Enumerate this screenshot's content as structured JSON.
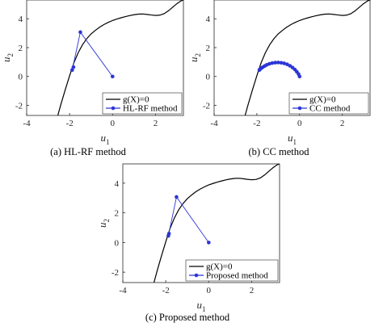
{
  "chart_data": [
    {
      "type": "line",
      "caption": "(a) HL-RF method",
      "xlabel": "u",
      "xlabel_sub": "1",
      "ylabel": "u",
      "ylabel_sub": "2",
      "xlim": [
        -4,
        3.3
      ],
      "ylim": [
        -2.7,
        5.3
      ],
      "xticks": [
        -4,
        -2,
        0,
        2
      ],
      "yticks": [
        -2,
        0,
        2,
        4
      ],
      "legend_position": "bottom-right",
      "series": [
        {
          "name": "g(X)=0",
          "color": "#000000",
          "marker": "none",
          "x": [
            -2.55,
            -2.4,
            -2.2,
            -2.0,
            -1.8,
            -1.6,
            -1.4,
            -1.2,
            -1.0,
            -0.8,
            -0.6,
            -0.4,
            -0.2,
            0.0,
            0.2,
            0.4,
            0.6,
            0.8,
            1.0,
            1.2,
            1.4,
            1.6,
            1.8,
            2.0,
            2.2,
            2.4,
            2.6,
            2.8,
            3.0,
            3.2,
            3.3
          ],
          "y": [
            -2.7,
            -1.9,
            -0.9,
            0.05,
            0.95,
            1.65,
            2.2,
            2.62,
            2.95,
            3.2,
            3.42,
            3.6,
            3.75,
            3.88,
            3.98,
            4.07,
            4.15,
            4.22,
            4.28,
            4.32,
            4.33,
            4.3,
            4.26,
            4.23,
            4.25,
            4.35,
            4.55,
            4.8,
            5.05,
            5.25,
            5.3
          ]
        },
        {
          "name": "HL-RF method",
          "color": "#2b35d6",
          "marker": "dot",
          "x": [
            0.0,
            -1.5,
            -1.88,
            -1.82
          ],
          "y": [
            0.0,
            3.07,
            0.45,
            0.65
          ]
        }
      ]
    },
    {
      "type": "line",
      "caption": "(b) CC method",
      "xlabel": "u",
      "xlabel_sub": "1",
      "ylabel": "u",
      "ylabel_sub": "2",
      "xlim": [
        -4,
        3.3
      ],
      "ylim": [
        -2.7,
        5.3
      ],
      "xticks": [
        -4,
        -2,
        0,
        2
      ],
      "yticks": [
        -2,
        0,
        2,
        4
      ],
      "legend_position": "bottom-right",
      "series": [
        {
          "name": "g(X)=0",
          "color": "#000000",
          "marker": "none",
          "x": [
            -2.55,
            -2.4,
            -2.2,
            -2.0,
            -1.8,
            -1.6,
            -1.4,
            -1.2,
            -1.0,
            -0.8,
            -0.6,
            -0.4,
            -0.2,
            0.0,
            0.2,
            0.4,
            0.6,
            0.8,
            1.0,
            1.2,
            1.4,
            1.6,
            1.8,
            2.0,
            2.2,
            2.4,
            2.6,
            2.8,
            3.0,
            3.2,
            3.3
          ],
          "y": [
            -2.7,
            -1.9,
            -0.9,
            0.05,
            0.95,
            1.65,
            2.2,
            2.62,
            2.95,
            3.2,
            3.42,
            3.6,
            3.75,
            3.88,
            3.98,
            4.07,
            4.15,
            4.22,
            4.28,
            4.32,
            4.33,
            4.3,
            4.26,
            4.23,
            4.25,
            4.35,
            4.55,
            4.8,
            5.05,
            5.25,
            5.3
          ]
        },
        {
          "name": "CC method",
          "color": "#2b35d6",
          "marker": "dot",
          "x": [
            0.0,
            -0.05,
            -0.13,
            -0.22,
            -0.33,
            -0.45,
            -0.58,
            -0.72,
            -0.86,
            -1.0,
            -1.14,
            -1.28,
            -1.41,
            -1.53,
            -1.63,
            -1.72,
            -1.79,
            -1.84,
            -1.87,
            -1.88
          ],
          "y": [
            0.0,
            0.17,
            0.33,
            0.48,
            0.62,
            0.74,
            0.84,
            0.91,
            0.95,
            0.97,
            0.96,
            0.93,
            0.88,
            0.81,
            0.73,
            0.65,
            0.58,
            0.52,
            0.48,
            0.45
          ]
        }
      ]
    },
    {
      "type": "line",
      "caption": "(c) Proposed method",
      "xlabel": "u",
      "xlabel_sub": "1",
      "ylabel": "u",
      "ylabel_sub": "2",
      "xlim": [
        -4,
        3.3
      ],
      "ylim": [
        -2.7,
        5.3
      ],
      "xticks": [
        -4,
        -2,
        0,
        2
      ],
      "yticks": [
        -2,
        0,
        2,
        4
      ],
      "legend_position": "bottom-right",
      "series": [
        {
          "name": "g(X)=0",
          "color": "#000000",
          "marker": "none",
          "x": [
            -2.55,
            -2.4,
            -2.2,
            -2.0,
            -1.8,
            -1.6,
            -1.4,
            -1.2,
            -1.0,
            -0.8,
            -0.6,
            -0.4,
            -0.2,
            0.0,
            0.2,
            0.4,
            0.6,
            0.8,
            1.0,
            1.2,
            1.4,
            1.6,
            1.8,
            2.0,
            2.2,
            2.4,
            2.6,
            2.8,
            3.0,
            3.2,
            3.3
          ],
          "y": [
            -2.7,
            -1.9,
            -0.9,
            0.05,
            0.95,
            1.65,
            2.2,
            2.62,
            2.95,
            3.2,
            3.42,
            3.6,
            3.75,
            3.88,
            3.98,
            4.07,
            4.15,
            4.22,
            4.28,
            4.32,
            4.33,
            4.3,
            4.26,
            4.23,
            4.25,
            4.35,
            4.55,
            4.8,
            5.05,
            5.25,
            5.3
          ]
        },
        {
          "name": "Proposed method",
          "color": "#2b35d6",
          "marker": "dot",
          "x": [
            0.0,
            -1.5,
            -1.88,
            -1.85
          ],
          "y": [
            0.0,
            3.07,
            0.45,
            0.6
          ]
        }
      ]
    }
  ]
}
